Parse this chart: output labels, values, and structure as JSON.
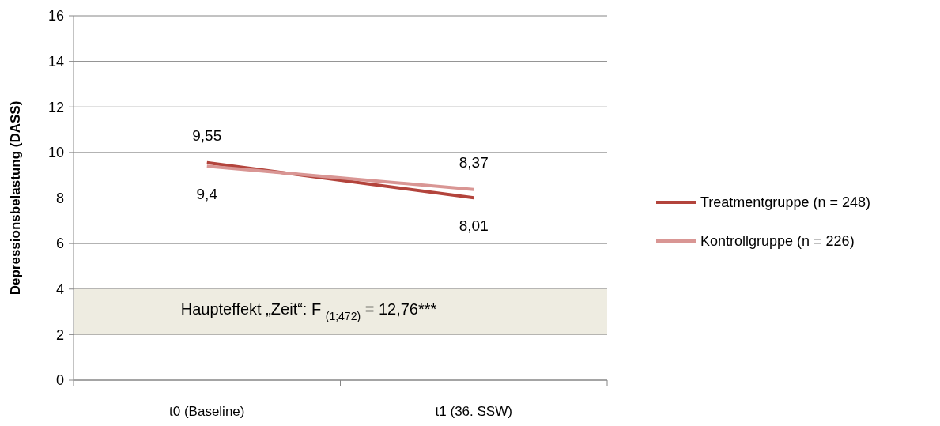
{
  "chart_data": {
    "type": "line",
    "ylabel": "Depressionsbelastung (DASS)",
    "categories": [
      "t0 (Baseline)",
      "t1 (36. SSW)"
    ],
    "series": [
      {
        "name": "Treatmentgruppe (n = 248)",
        "color": "#b3443c",
        "values": [
          9.55,
          8.01
        ],
        "value_labels": [
          "9,55",
          "8,01"
        ]
      },
      {
        "name": "Kontrollgruppe (n = 226)",
        "color": "#d99694",
        "values": [
          9.4,
          8.37
        ],
        "value_labels": [
          "9,4",
          "8,37"
        ]
      }
    ],
    "ylim": [
      0,
      16
    ],
    "yticks": [
      0,
      2,
      4,
      6,
      8,
      10,
      12,
      14,
      16
    ],
    "grid": "y",
    "legend": "right",
    "bands": [
      {
        "axis": "y",
        "from": 2,
        "to": 4,
        "label": "Haupteffekt „Zeit“: F $_{(1;472)}$ = 12,76***",
        "color": "#eeece1"
      }
    ]
  }
}
